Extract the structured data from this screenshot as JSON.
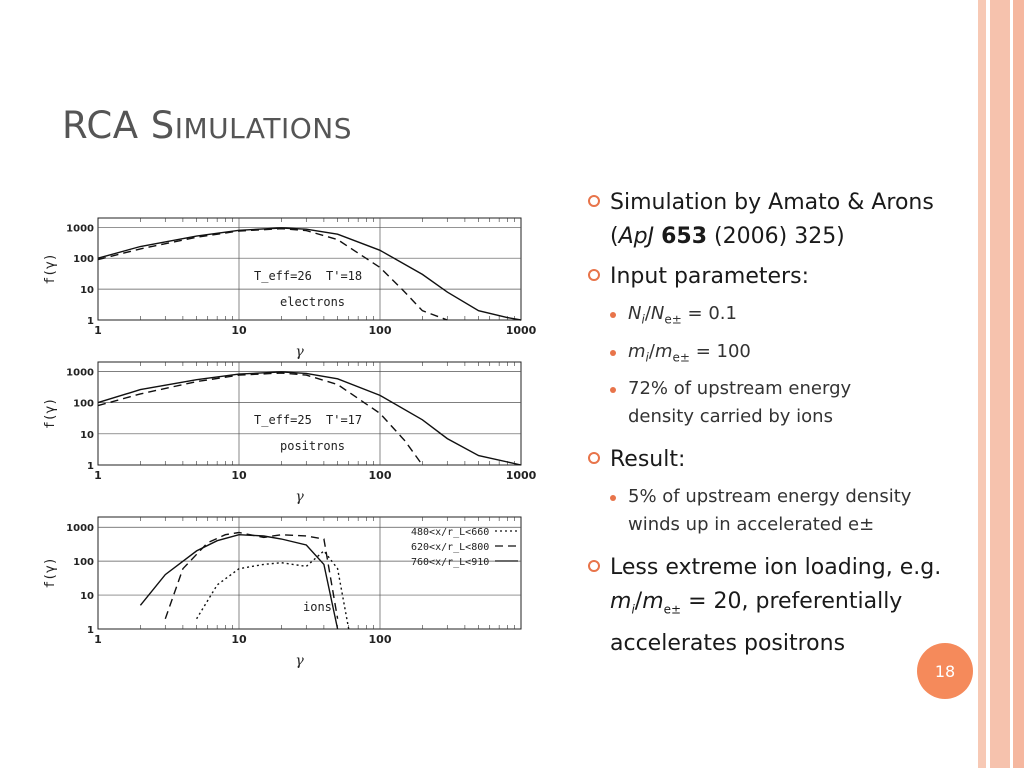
{
  "slide": {
    "title_main": "RCA S",
    "title_rest": "IMULATIONS",
    "page_number": "18"
  },
  "bullets": [
    {
      "lines": [
        "Simulation by Amato & Arons",
        "(ApJ 653 (2006) 325)"
      ],
      "text_a": "Simulation by Amato & Arons",
      "text_b": "(",
      "text_c": "ApJ",
      "text_d": "653",
      "text_e": "(2006) 325)"
    },
    {
      "text": "Input parameters:"
    },
    {
      "text": "Result:"
    },
    {
      "text_a": "Less extreme ion loading, e.g.",
      "text_b": "= 20, preferentially",
      "text_c": "accelerates positrons"
    }
  ],
  "sub_bullets": {
    "ni_ne": {
      "n": "N",
      "i": "i",
      "slash": "/",
      "e": "e±",
      "value": "= 0.1"
    },
    "mi_me": {
      "m": "m",
      "i": "i",
      "slash": "/",
      "e": "e±",
      "value": "= 100"
    },
    "energy_ions": {
      "line1": "72% of upstream energy",
      "line2": "density carried by ions"
    },
    "result": {
      "line1": "5% of upstream energy density",
      "line2": "winds up in accelerated e±"
    },
    "loading": {
      "m": "m",
      "i": "i",
      "slash": "/",
      "e": "e±"
    }
  },
  "colors": {
    "accent": "#e8744a",
    "stripe": "#f6c2ad",
    "title": "#555555",
    "badge": "#f58a5b"
  },
  "chart_data": [
    {
      "type": "line",
      "panel": "electrons",
      "xscale": "log",
      "yscale": "log",
      "xlim": [
        1,
        1000
      ],
      "ylim": [
        1,
        2000
      ],
      "xticks": [
        "1",
        "10",
        "100",
        "1000"
      ],
      "yticks": [
        "1",
        "10",
        "100",
        "1000"
      ],
      "xlabel": "γ",
      "ylabel": "f(γ)",
      "annotations": [
        "T_eff=26",
        "T'=18",
        "electrons"
      ],
      "series": [
        {
          "style": "solid",
          "x": [
            1,
            2,
            5,
            10,
            20,
            30,
            50,
            100,
            200,
            300,
            500,
            800,
            1000
          ],
          "y": [
            100,
            240,
            520,
            800,
            950,
            870,
            600,
            180,
            30,
            8,
            2,
            1.2,
            1
          ]
        },
        {
          "style": "dashed",
          "x": [
            1,
            2,
            5,
            10,
            20,
            30,
            50,
            100,
            150,
            200,
            300
          ],
          "y": [
            90,
            200,
            480,
            760,
            900,
            780,
            400,
            50,
            8,
            2,
            0.5
          ]
        }
      ]
    },
    {
      "type": "line",
      "panel": "positrons",
      "xscale": "log",
      "yscale": "log",
      "xlim": [
        1,
        1000
      ],
      "ylim": [
        1,
        2000
      ],
      "xticks": [
        "1",
        "10",
        "100",
        "1000"
      ],
      "yticks": [
        "1",
        "10",
        "100",
        "1000"
      ],
      "xlabel": "γ",
      "ylabel": "f(γ)",
      "annotations": [
        "T_eff=25",
        "T'=17",
        "positrons"
      ],
      "series": [
        {
          "style": "solid",
          "x": [
            1,
            2,
            5,
            10,
            20,
            30,
            50,
            100,
            200,
            300,
            500,
            1000
          ],
          "y": [
            100,
            260,
            540,
            820,
            960,
            860,
            580,
            170,
            28,
            7,
            2,
            1
          ]
        },
        {
          "style": "dashed",
          "x": [
            1,
            2,
            5,
            10,
            20,
            30,
            50,
            100,
            150,
            200
          ],
          "y": [
            80,
            190,
            470,
            760,
            890,
            760,
            380,
            45,
            6,
            1
          ]
        }
      ]
    },
    {
      "type": "line",
      "panel": "ions",
      "xscale": "log",
      "yscale": "log",
      "xlim": [
        1,
        1000
      ],
      "ylim": [
        1,
        2000
      ],
      "xticks": [
        "1",
        "10",
        "100"
      ],
      "yticks": [
        "1",
        "10",
        "100",
        "1000"
      ],
      "xlabel": "γ",
      "ylabel": "f(γ)",
      "annotations": [
        "ions"
      ],
      "legend": [
        "480<x/r_L<660",
        "620<x/r_L<800",
        "760<x/r_L<910"
      ],
      "series": [
        {
          "name": "480<x/r_L<660",
          "style": "dotted",
          "x": [
            5,
            7,
            10,
            15,
            20,
            30,
            40,
            50,
            60
          ],
          "y": [
            2,
            20,
            60,
            80,
            90,
            70,
            200,
            60,
            1
          ]
        },
        {
          "name": "620<x/r_L<800",
          "style": "dashed",
          "x": [
            3,
            4,
            6,
            8,
            10,
            15,
            20,
            30,
            40,
            50
          ],
          "y": [
            2,
            60,
            350,
            600,
            700,
            500,
            600,
            550,
            450,
            2
          ]
        },
        {
          "name": "760<x/r_L<910",
          "style": "solid",
          "x": [
            2,
            3,
            5,
            7,
            10,
            15,
            20,
            30,
            40,
            50
          ],
          "y": [
            5,
            40,
            200,
            400,
            600,
            550,
            450,
            300,
            80,
            1
          ]
        }
      ]
    }
  ]
}
